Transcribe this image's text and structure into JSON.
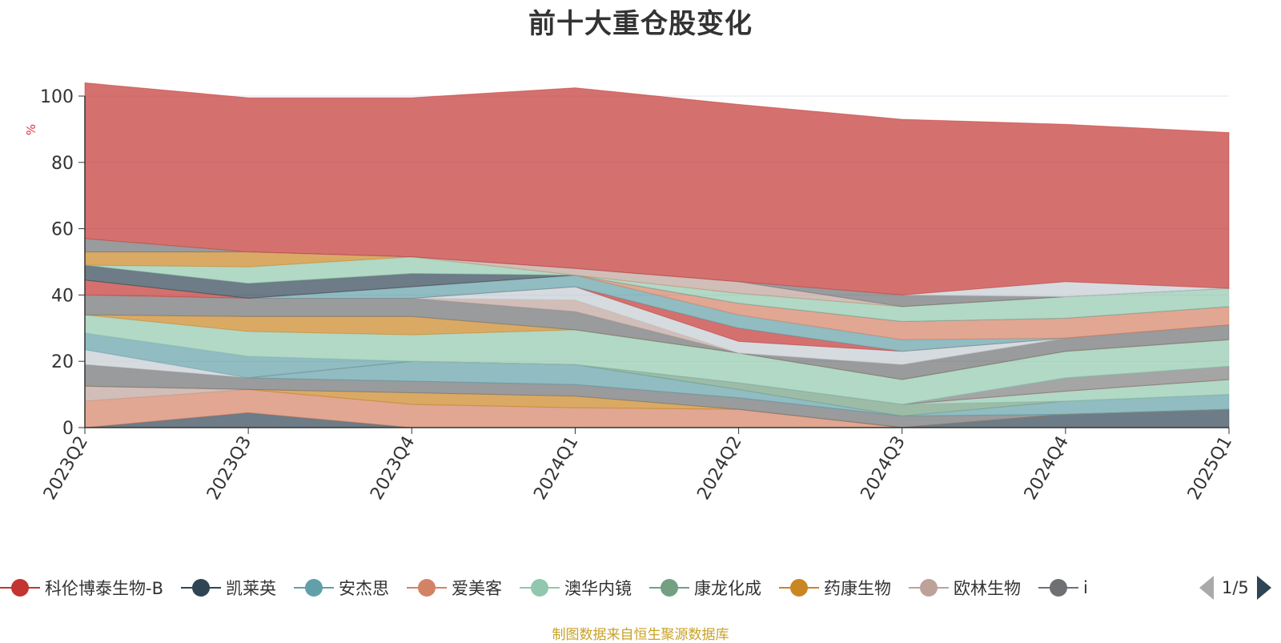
{
  "title": "前十大重仓股变化",
  "source_note": "制图数据来自恒生聚源数据库",
  "pager": {
    "text": "1/5"
  },
  "chart_data": {
    "type": "area",
    "stacked": true,
    "categories": [
      "2023Q2",
      "2023Q3",
      "2023Q4",
      "2024Q1",
      "2024Q2",
      "2024Q3",
      "2024Q4",
      "2025Q1"
    ],
    "ylabel": "%",
    "ylim": [
      0,
      100
    ],
    "yticks": [
      0,
      20,
      40,
      60,
      80,
      100
    ],
    "grid": true,
    "legend_position": "bottom",
    "series": [
      {
        "name": "",
        "color": "#2f4554",
        "values": [
          0,
          4.5,
          0,
          0,
          0,
          0,
          4,
          5.5
        ]
      },
      {
        "name": "爱美客",
        "color": "#d48265",
        "values": [
          8,
          7,
          7,
          6,
          5.5,
          0,
          0,
          0
        ]
      },
      {
        "name": "",
        "color": "#bda29a",
        "values": [
          4.5,
          0,
          0,
          0,
          0,
          0,
          0,
          0
        ]
      },
      {
        "name": "药康生物",
        "color": "#ca8622",
        "values": [
          0,
          0,
          3.5,
          3.5,
          0,
          0,
          0,
          0
        ]
      },
      {
        "name": "",
        "color": "#6e7074",
        "values": [
          6.5,
          3.5,
          3.5,
          3.5,
          3.5,
          3.5,
          0,
          0
        ]
      },
      {
        "name": "安杰思",
        "color": "#61a0a8",
        "values": [
          0,
          0,
          6,
          6,
          2.5,
          0,
          4,
          4.5
        ]
      },
      {
        "name": "康龙化成",
        "color": "#749f83",
        "values": [
          0,
          0,
          0,
          0,
          2,
          3.5,
          0,
          0
        ]
      },
      {
        "name": "澳华内镜",
        "color": "#91c7ae",
        "values": [
          0,
          0,
          0,
          0,
          0,
          0,
          3,
          4.5
        ]
      },
      {
        "name": "",
        "color": "#c23531",
        "values": [
          0,
          0,
          0,
          0,
          0,
          0,
          0,
          0
        ]
      },
      {
        "name": "",
        "color": "#7f7f7f",
        "values": [
          0,
          0,
          0,
          0,
          0,
          0,
          4,
          4
        ]
      },
      {
        "name": "",
        "color": "#c4ccd3",
        "values": [
          4.5,
          0,
          0,
          0,
          0,
          0,
          0,
          0
        ]
      },
      {
        "name": "",
        "color": "#61a0a8",
        "values": [
          5,
          6.5,
          0,
          0,
          0,
          0,
          0,
          0
        ]
      },
      {
        "name": "",
        "color": "#91c7ae",
        "values": [
          5.5,
          7.5,
          8,
          10.5,
          9,
          7.5,
          8,
          8
        ]
      },
      {
        "name": "",
        "color": "#ca8622",
        "values": [
          0,
          4.5,
          5.5,
          0,
          0,
          0,
          0,
          0
        ]
      },
      {
        "name": "",
        "color": "#6e7074",
        "values": [
          6,
          5.5,
          5.5,
          5.5,
          0,
          4.5,
          4,
          4.5
        ]
      },
      {
        "name": "",
        "color": "#bda29a",
        "values": [
          0,
          0,
          0,
          3.5,
          0,
          0,
          0,
          0
        ]
      },
      {
        "name": "",
        "color": "#c4ccd3",
        "values": [
          0,
          0,
          0,
          4,
          3.5,
          4,
          0,
          0
        ]
      },
      {
        "name": "",
        "color": "#c23531",
        "values": [
          4.5,
          0,
          0,
          0,
          4,
          0,
          0,
          0
        ]
      },
      {
        "name": "",
        "color": "#61a0a8",
        "values": [
          0,
          0,
          3.5,
          3.5,
          4,
          3.5,
          0,
          0
        ]
      },
      {
        "name": "",
        "color": "#d48265",
        "values": [
          0,
          0,
          0,
          0,
          3.5,
          5.5,
          6,
          5.5
        ]
      },
      {
        "name": "",
        "color": "#2f4554",
        "values": [
          4.5,
          4.5,
          4,
          0,
          0,
          0,
          0,
          0
        ]
      },
      {
        "name": "",
        "color": "#91c7ae",
        "values": [
          0,
          5,
          5,
          0,
          3,
          4.5,
          6.5,
          5.5
        ]
      },
      {
        "name": "",
        "color": "#ca8622",
        "values": [
          4,
          4.5,
          0,
          0,
          0,
          0,
          0,
          0
        ]
      },
      {
        "name": "",
        "color": "#bda29a",
        "values": [
          0,
          0,
          0,
          2,
          3.5,
          0,
          0,
          0
        ]
      },
      {
        "name": "",
        "color": "#6e7074",
        "values": [
          4,
          0,
          0,
          0,
          0,
          3.5,
          0,
          0
        ]
      },
      {
        "name": "",
        "color": "#c4ccd3",
        "values": [
          0,
          0,
          0,
          0,
          0,
          0,
          4.5,
          0
        ]
      },
      {
        "name": "科伦博泰生物-B",
        "color": "#c23531",
        "values": [
          47,
          46.5,
          48,
          54.5,
          53.5,
          53,
          47.5,
          47
        ]
      }
    ]
  },
  "legend": {
    "items": [
      {
        "label": "科伦博泰生物-B",
        "color": "#c23531"
      },
      {
        "label": "凯莱英",
        "color": "#2f4554"
      },
      {
        "label": "安杰思",
        "color": "#61a0a8"
      },
      {
        "label": "爱美客",
        "color": "#d48265"
      },
      {
        "label": "澳华内镜",
        "color": "#91c7ae"
      },
      {
        "label": "康龙化成",
        "color": "#749f83"
      },
      {
        "label": "药康生物",
        "color": "#ca8622"
      },
      {
        "label": "欧林生物",
        "color": "#bda29a"
      },
      {
        "label": "i",
        "color": "#6e7074"
      }
    ]
  }
}
